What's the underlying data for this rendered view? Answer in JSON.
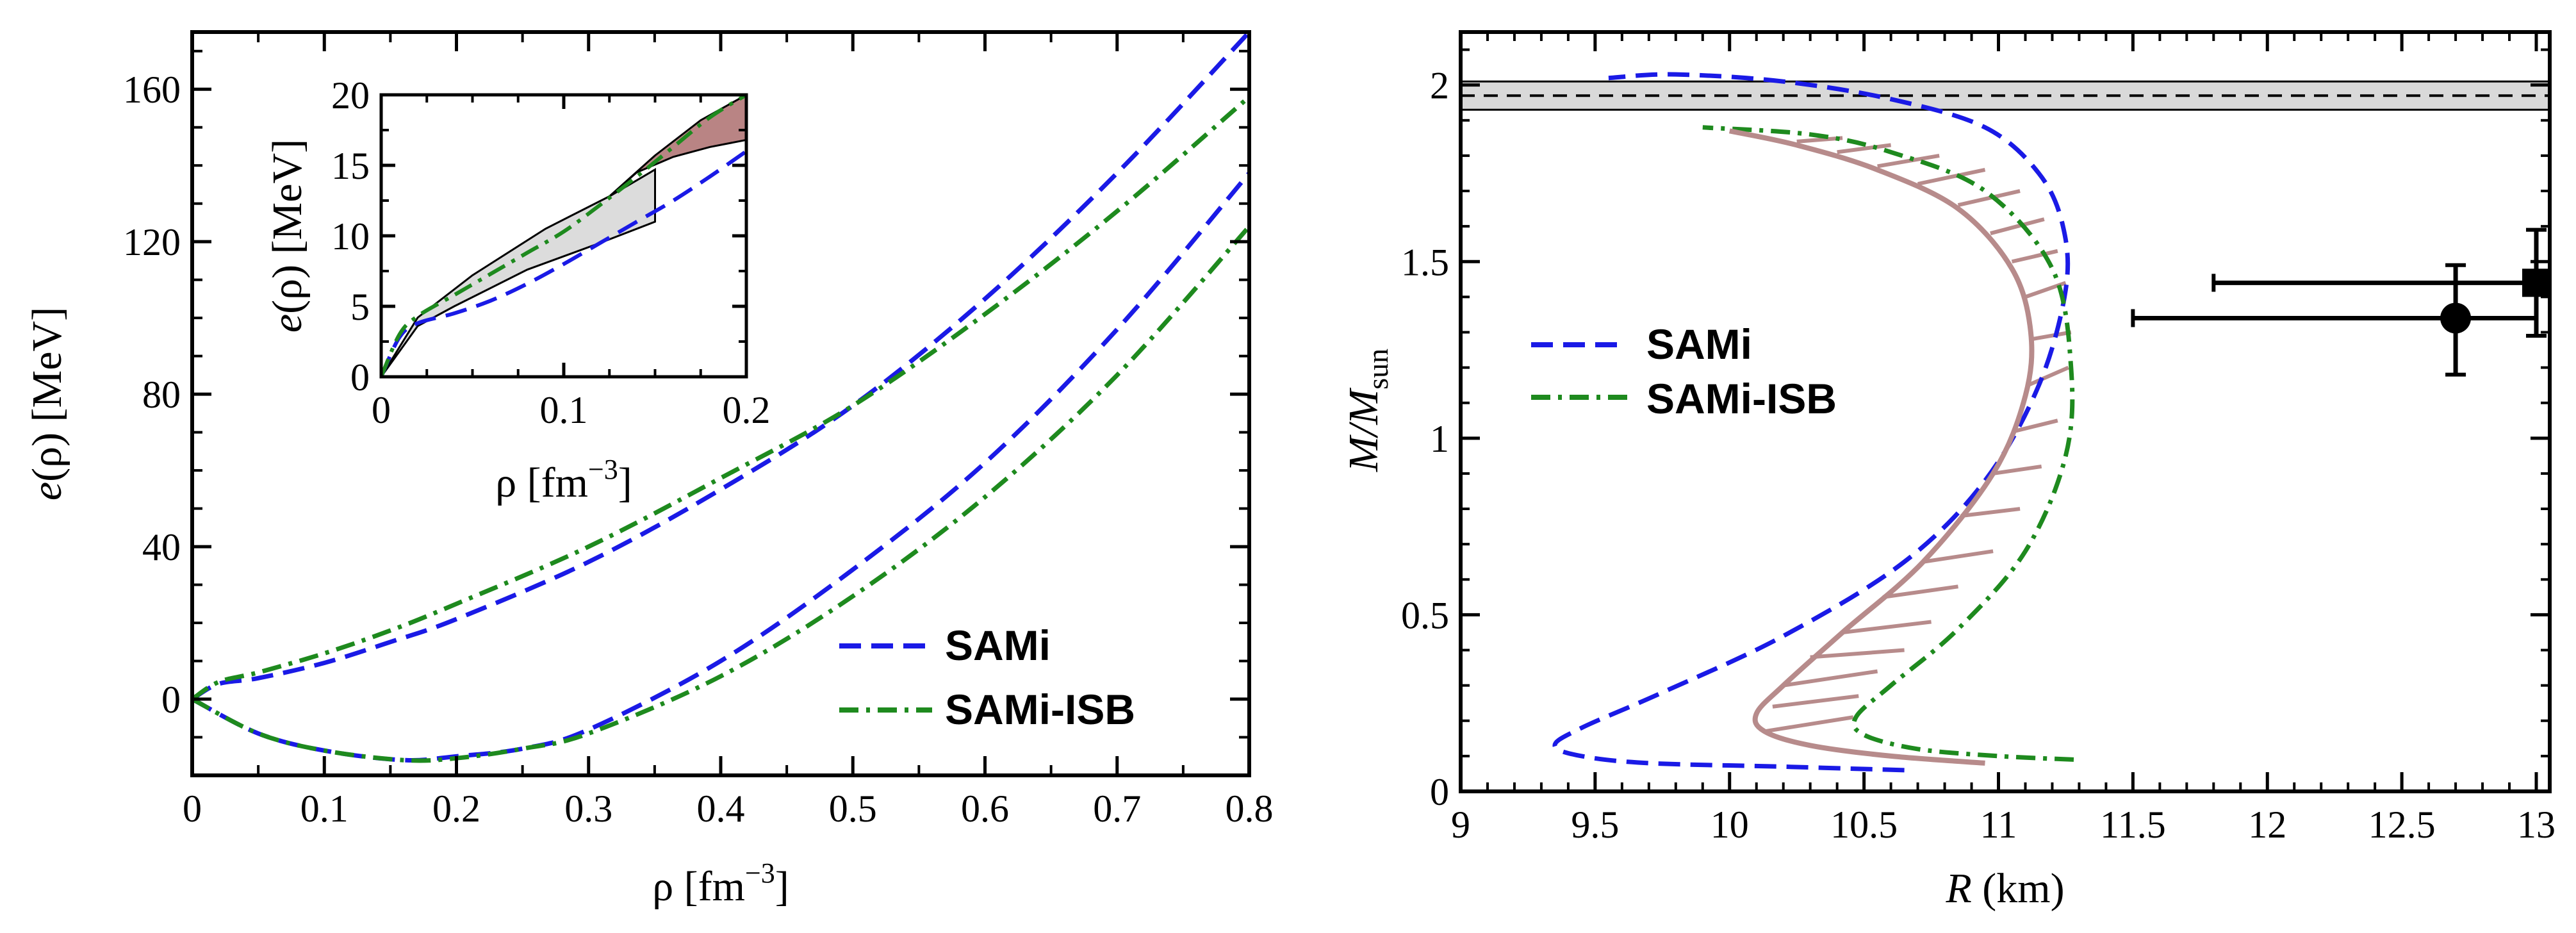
{
  "colors": {
    "samI": "#1a1ae6",
    "samIISB": "#1e8a1e",
    "band_fill": "#c69a9a",
    "band_stroke": "#b78b8b",
    "inset_region_dark": "#b98484",
    "inset_region_light": "#dcdcdc",
    "obs_band": "#d9d9d9"
  },
  "chart_data": [
    {
      "id": "left",
      "type": "line",
      "xlabel": "ρ [fm",
      "xlabel_sup": "−3",
      "xlabel_close": "]",
      "ylabel_main": "e",
      "ylabel_rest": "(ρ) [MeV]",
      "xlim": [
        0,
        0.8
      ],
      "ylim": [
        -20,
        175
      ],
      "xticks": [
        0,
        0.1,
        0.2,
        0.3,
        0.4,
        0.5,
        0.6,
        0.7,
        0.8
      ],
      "xtick_labels": [
        "0",
        "0.1",
        "0.2",
        "0.3",
        "0.4",
        "0.5",
        "0.6",
        "0.7",
        "0.8"
      ],
      "yticks": [
        0,
        40,
        80,
        120,
        160
      ],
      "ytick_labels": [
        "0",
        "40",
        "80",
        "120",
        "160"
      ],
      "legend": {
        "position": "bottom-right",
        "entries": [
          "SAMi",
          "SAMi-ISB"
        ]
      },
      "series": [
        {
          "name": "SAMi neutron matter",
          "color_key": "samI",
          "dash": "dash",
          "x": [
            0,
            0.02,
            0.05,
            0.1,
            0.15,
            0.2,
            0.3,
            0.4,
            0.5,
            0.6,
            0.7,
            0.8
          ],
          "y": [
            0,
            4,
            5.5,
            9.5,
            15,
            21,
            36,
            55,
            77,
            105,
            138,
            175
          ]
        },
        {
          "name": "SAMi-ISB neutron matter",
          "color_key": "samIISB",
          "dash": "dashdot",
          "x": [
            0,
            0.02,
            0.05,
            0.1,
            0.15,
            0.2,
            0.3,
            0.4,
            0.5,
            0.6,
            0.7,
            0.8
          ],
          "y": [
            0,
            4.5,
            7,
            12,
            18,
            25,
            40,
            58,
            77,
            101,
            128,
            158
          ]
        },
        {
          "name": "SAMi symmetric matter",
          "color_key": "samI",
          "dash": "dash",
          "x": [
            0,
            0.05,
            0.1,
            0.16,
            0.2,
            0.25,
            0.3,
            0.4,
            0.5,
            0.6,
            0.7,
            0.8
          ],
          "y": [
            0,
            -9,
            -13.5,
            -16,
            -15,
            -13,
            -8,
            10,
            34,
            62,
            97,
            138
          ]
        },
        {
          "name": "SAMi-ISB symmetric matter",
          "color_key": "samIISB",
          "dash": "dashdot",
          "x": [
            0,
            0.05,
            0.1,
            0.16,
            0.2,
            0.25,
            0.3,
            0.4,
            0.5,
            0.6,
            0.7,
            0.8
          ],
          "y": [
            0,
            -9,
            -13.5,
            -16,
            -15.5,
            -13,
            -9,
            6,
            27,
            53,
            85,
            124
          ]
        }
      ],
      "inset": {
        "xlabel": "ρ [fm",
        "xlabel_sup": "−3",
        "xlabel_close": "]",
        "ylabel_main": "e",
        "ylabel_rest": "(ρ) [MeV]",
        "xlim": [
          0,
          0.2
        ],
        "ylim": [
          0,
          20
        ],
        "xticks": [
          0,
          0.1,
          0.2
        ],
        "xtick_labels": [
          "0",
          "0.1",
          "0.2"
        ],
        "yticks": [
          0,
          5,
          10,
          15,
          20
        ],
        "ytick_labels": [
          "0",
          "5",
          "10",
          "15",
          "20"
        ],
        "series": [
          {
            "name": "SAMi",
            "color_key": "samI",
            "dash": "dash",
            "x": [
              0,
              0.01,
              0.02,
              0.04,
              0.06,
              0.08,
              0.1,
              0.12,
              0.14,
              0.16,
              0.18,
              0.2
            ],
            "y": [
              0,
              2.8,
              3.8,
              4.5,
              5.4,
              6.6,
              8,
              9.5,
              11,
              12.5,
              14.2,
              16
            ]
          },
          {
            "name": "SAMi-ISB",
            "color_key": "samIISB",
            "dash": "dashdot",
            "x": [
              0,
              0.01,
              0.02,
              0.04,
              0.06,
              0.08,
              0.1,
              0.12,
              0.14,
              0.16,
              0.18,
              0.2
            ],
            "y": [
              0,
              3,
              4.3,
              5.8,
              7.3,
              8.8,
              10.3,
              12.2,
              14.2,
              16.3,
              18.4,
              20
            ]
          }
        ],
        "regions": [
          {
            "name": "light band",
            "fill_key": "inset_region_light",
            "x": [
              0,
              0.02,
              0.05,
              0.09,
              0.125,
              0.15,
              0.15,
              0.12,
              0.08,
              0.04,
              0.02,
              0
            ],
            "y": [
              0,
              4.2,
              7.2,
              10.5,
              12.8,
              14.7,
              11,
              9.5,
              7.6,
              5,
              3.6,
              0
            ]
          },
          {
            "name": "dark band",
            "fill_key": "inset_region_dark",
            "x": [
              0.125,
              0.15,
              0.175,
              0.2,
              0.2,
              0.18,
              0.16,
              0.14
            ],
            "y": [
              12.8,
              15.7,
              18.2,
              20,
              16.8,
              16.3,
              15.6,
              14.5
            ]
          }
        ]
      }
    },
    {
      "id": "right",
      "type": "line",
      "xlabel_main": "R",
      "xlabel_rest": " (km)",
      "ylabel_main": "M/M",
      "ylabel_sub": "sun",
      "xlim": [
        9,
        13.05
      ],
      "ylim": [
        0,
        2.15
      ],
      "xticks": [
        9,
        9.5,
        10,
        10.5,
        11,
        11.5,
        12,
        12.5,
        13
      ],
      "xtick_labels": [
        "9",
        "9.5",
        "10",
        "10.5",
        "11",
        "11.5",
        "12",
        "12.5",
        "13"
      ],
      "yticks": [
        0,
        0.5,
        1,
        1.5,
        2
      ],
      "ytick_labels": [
        "0",
        "0.5",
        "1",
        "1.5",
        "2"
      ],
      "legend": {
        "position": "center-left",
        "entries": [
          "SAMi",
          "SAMi-ISB"
        ]
      },
      "observational_band": {
        "y_center": 1.97,
        "y_low": 1.93,
        "y_high": 2.01
      },
      "series": [
        {
          "name": "SAMi",
          "color_key": "samI",
          "dash": "dash",
          "x": [
            10.65,
            10.2,
            9.7,
            9.45,
            9.35,
            9.45,
            9.75,
            10.2,
            10.65,
            10.95,
            11.15,
            11.25,
            11.24,
            11.15,
            10.95,
            10.6,
            10.2,
            9.8,
            9.55
          ],
          "y": [
            0.06,
            0.07,
            0.08,
            0.1,
            0.13,
            0.18,
            0.28,
            0.44,
            0.65,
            0.88,
            1.15,
            1.42,
            1.6,
            1.75,
            1.88,
            1.96,
            2.01,
            2.03,
            2.02
          ]
        },
        {
          "name": "SAMi-ISB",
          "color_key": "samIISB",
          "dash": "dashdot",
          "x": [
            11.28,
            11.0,
            10.7,
            10.5,
            10.47,
            10.6,
            10.85,
            11.1,
            11.25,
            11.27,
            11.2,
            10.95,
            10.6,
            10.3,
            9.9
          ],
          "y": [
            0.09,
            0.1,
            0.12,
            0.16,
            0.21,
            0.3,
            0.46,
            0.68,
            0.95,
            1.2,
            1.48,
            1.7,
            1.81,
            1.86,
            1.88
          ]
        },
        {
          "name": "Band boundary",
          "color_key": "band_stroke",
          "dash": "solid",
          "x": [
            10.95,
            10.6,
            10.3,
            10.13,
            10.1,
            10.2,
            10.42,
            10.72,
            10.98,
            11.1,
            11.12,
            11.05,
            10.85,
            10.55,
            10.25,
            10.0
          ],
          "y": [
            0.08,
            0.1,
            0.13,
            0.17,
            0.22,
            0.3,
            0.45,
            0.65,
            0.9,
            1.12,
            1.3,
            1.48,
            1.65,
            1.76,
            1.83,
            1.87
          ]
        }
      ],
      "hatch_pairs_inner_outer": [
        [
          [
            10.13,
            0.17
          ],
          [
            10.46,
            0.21
          ]
        ],
        [
          [
            10.16,
            0.24
          ],
          [
            10.48,
            0.27
          ]
        ],
        [
          [
            10.2,
            0.3
          ],
          [
            10.55,
            0.34
          ]
        ],
        [
          [
            10.3,
            0.38
          ],
          [
            10.65,
            0.4
          ]
        ],
        [
          [
            10.42,
            0.45
          ],
          [
            10.75,
            0.48
          ]
        ],
        [
          [
            10.57,
            0.55
          ],
          [
            10.85,
            0.58
          ]
        ],
        [
          [
            10.72,
            0.65
          ],
          [
            10.98,
            0.68
          ]
        ],
        [
          [
            10.86,
            0.78
          ],
          [
            11.08,
            0.8
          ]
        ],
        [
          [
            10.98,
            0.9
          ],
          [
            11.16,
            0.92
          ]
        ],
        [
          [
            11.06,
            1.02
          ],
          [
            11.22,
            1.05
          ]
        ],
        [
          [
            11.11,
            1.15
          ],
          [
            11.26,
            1.2
          ]
        ],
        [
          [
            11.12,
            1.28
          ],
          [
            11.27,
            1.3
          ]
        ],
        [
          [
            11.1,
            1.4
          ],
          [
            11.25,
            1.44
          ]
        ],
        [
          [
            11.05,
            1.5
          ],
          [
            11.22,
            1.53
          ]
        ],
        [
          [
            10.97,
            1.58
          ],
          [
            11.17,
            1.62
          ]
        ],
        [
          [
            10.85,
            1.66
          ],
          [
            11.08,
            1.7
          ]
        ],
        [
          [
            10.7,
            1.72
          ],
          [
            10.95,
            1.76
          ]
        ],
        [
          [
            10.55,
            1.77
          ],
          [
            10.78,
            1.8
          ]
        ],
        [
          [
            10.4,
            1.81
          ],
          [
            10.6,
            1.83
          ]
        ],
        [
          [
            10.25,
            1.84
          ],
          [
            10.42,
            1.85
          ]
        ]
      ],
      "data_points": [
        {
          "marker": "circle",
          "x": 12.7,
          "y": 1.34,
          "xerr": [
            11.5,
            13.0
          ],
          "yerr": [
            1.18,
            1.49
          ]
        },
        {
          "marker": "square",
          "x": 13.0,
          "y": 1.44,
          "xerr": [
            11.8,
            13.0
          ],
          "yerr": [
            1.29,
            1.59
          ]
        }
      ]
    }
  ]
}
